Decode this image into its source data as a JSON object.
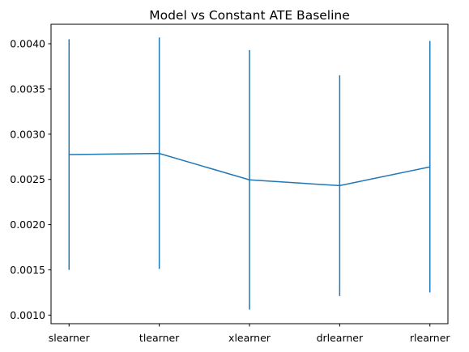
{
  "chart_data": {
    "type": "line",
    "title": "Model vs Constant ATE Baseline",
    "xlabel": "",
    "ylabel": "",
    "categories": [
      "slearner",
      "tlearner",
      "xlearner",
      "drlearner",
      "rlearner"
    ],
    "series": [
      {
        "values": [
          0.002775,
          0.002787,
          0.002495,
          0.002431,
          0.002638
        ],
        "lower": [
          0.0015,
          0.00151,
          0.00106,
          0.00121,
          0.00125
        ],
        "upper": [
          0.00405,
          0.00407,
          0.00393,
          0.00365,
          0.00403
        ],
        "color": "#1f77b4"
      }
    ],
    "yticks": [
      0.001,
      0.0015,
      0.002,
      0.0025,
      0.003,
      0.0035,
      0.004
    ],
    "ytick_labels": [
      "0.0010",
      "0.0015",
      "0.0020",
      "0.0025",
      "0.0030",
      "0.0035",
      "0.0040"
    ],
    "ylim": [
      0.000905,
      0.004215
    ],
    "grid": false,
    "legend": "none"
  }
}
